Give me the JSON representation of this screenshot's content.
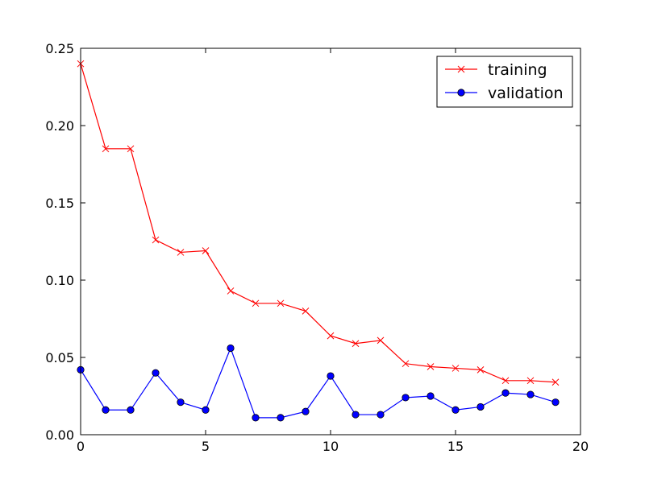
{
  "chart_data": {
    "type": "line",
    "title": "",
    "xlabel": "",
    "ylabel": "",
    "xlim": [
      0,
      20
    ],
    "ylim": [
      0,
      0.25
    ],
    "xticks": [
      {
        "value": 0,
        "label": "0"
      },
      {
        "value": 5,
        "label": "5"
      },
      {
        "value": 10,
        "label": "10"
      },
      {
        "value": 15,
        "label": "15"
      },
      {
        "value": 20,
        "label": "20"
      }
    ],
    "yticks": [
      {
        "value": 0,
        "label": "0.00"
      },
      {
        "value": 0.05,
        "label": "0.05"
      },
      {
        "value": 0.1,
        "label": "0.10"
      },
      {
        "value": 0.15,
        "label": "0.15"
      },
      {
        "value": 0.2,
        "label": "0.20"
      },
      {
        "value": 0.25,
        "label": "0.25"
      }
    ],
    "grid": false,
    "legend_position": "top-right",
    "x": [
      0,
      1,
      2,
      3,
      4,
      5,
      6,
      7,
      8,
      9,
      10,
      11,
      12,
      13,
      14,
      15,
      16,
      17,
      18,
      19
    ],
    "series": [
      {
        "name": "training",
        "color": "#ff0000",
        "marker": "x",
        "values": [
          0.24,
          0.185,
          0.185,
          0.126,
          0.118,
          0.119,
          0.093,
          0.085,
          0.085,
          0.08,
          0.064,
          0.059,
          0.061,
          0.046,
          0.044,
          0.043,
          0.042,
          0.035,
          0.035,
          0.034
        ]
      },
      {
        "name": "validation",
        "color": "#0000ff",
        "marker": "circle",
        "values": [
          0.042,
          0.016,
          0.016,
          0.04,
          0.021,
          0.016,
          0.056,
          0.011,
          0.011,
          0.015,
          0.038,
          0.013,
          0.013,
          0.024,
          0.025,
          0.016,
          0.018,
          0.027,
          0.026,
          0.021
        ]
      }
    ]
  }
}
